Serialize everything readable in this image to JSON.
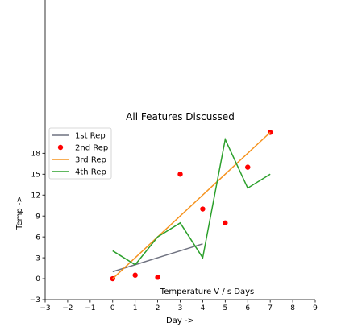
{
  "chart_data": {
    "type": "line",
    "title": "All Features Discussed",
    "annotation": "Temperature V / s Days",
    "xlabel": "Day ->",
    "ylabel": "Temp ->",
    "xlim": [
      -3,
      9
    ],
    "ylim": [
      -3,
      40
    ],
    "xticks": [
      -3,
      -2,
      -1,
      0,
      1,
      2,
      3,
      4,
      5,
      6,
      7,
      8,
      9
    ],
    "yticks": [
      -3,
      0,
      3,
      6,
      9,
      12,
      15,
      18
    ],
    "legend_position": "upper-left",
    "series": [
      {
        "name": "1st Rep",
        "kind": "line",
        "color": "#6f7280",
        "x": [
          0,
          1,
          2,
          3,
          4
        ],
        "y": [
          1,
          2,
          3,
          4,
          5
        ]
      },
      {
        "name": "2nd Rep",
        "kind": "scatter",
        "color": "#ff0000",
        "x": [
          0,
          1,
          2,
          3,
          4,
          5,
          6,
          7
        ],
        "y": [
          0,
          0.5,
          0.2,
          15,
          10,
          8,
          16,
          21
        ]
      },
      {
        "name": "3rd Rep",
        "kind": "line",
        "color": "#f5931f",
        "x": [
          0,
          7
        ],
        "y": [
          0,
          21
        ]
      },
      {
        "name": "4th Rep",
        "kind": "line",
        "color": "#2ca02c",
        "x": [
          0,
          1,
          2,
          3,
          4,
          5,
          6,
          7
        ],
        "y": [
          4,
          2,
          6,
          8,
          3,
          20,
          13,
          15
        ]
      }
    ]
  }
}
